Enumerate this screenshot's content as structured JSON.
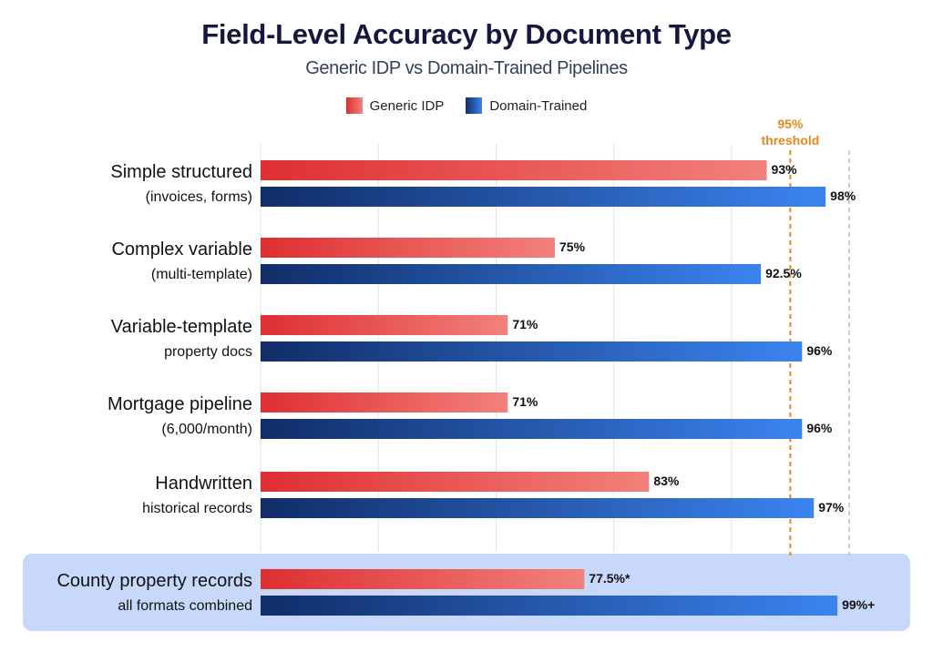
{
  "chart_data": {
    "type": "bar",
    "orientation": "horizontal",
    "title": "Field-Level Accuracy by Document Type",
    "subtitle": "Generic IDP vs Domain-Trained Pipelines",
    "categories": [
      {
        "main": "Simple structured",
        "sub": "(invoices, forms)"
      },
      {
        "main": "Complex variable",
        "sub": "(multi-template)"
      },
      {
        "main": "Variable-template",
        "sub": "property docs"
      },
      {
        "main": "Mortgage pipeline",
        "sub": "(6,000/month)"
      },
      {
        "main": "Handwritten",
        "sub": "historical records"
      },
      {
        "main": "County property records",
        "sub": "all formats combined",
        "highlight": true
      }
    ],
    "series": [
      {
        "name": "Generic IDP",
        "color": "#de2f32",
        "color_light": "#f2817b",
        "values": [
          93,
          75,
          71,
          71,
          83,
          77.5
        ],
        "labels": [
          "93%",
          "75%",
          "71%",
          "71%",
          "83%",
          "77.5%*"
        ]
      },
      {
        "name": "Domain-Trained",
        "color": "#102d68",
        "color_light": "#3b84f0",
        "values": [
          98,
          92.5,
          96,
          96,
          97,
          99
        ],
        "labels": [
          "98%",
          "92.5%",
          "96%",
          "96%",
          "97%",
          "99%+"
        ]
      }
    ],
    "xlim": [
      50,
      100
    ],
    "grid": true,
    "legend": "top-center",
    "reference_lines": [
      {
        "value": 95,
        "label_line1": "95%",
        "label_line2": "threshold",
        "color": "#e8881a",
        "style": "dashed"
      },
      {
        "value": 100,
        "color": "#bbbbbb",
        "style": "dashed"
      }
    ],
    "highlight_color": "#c7d8fb"
  }
}
